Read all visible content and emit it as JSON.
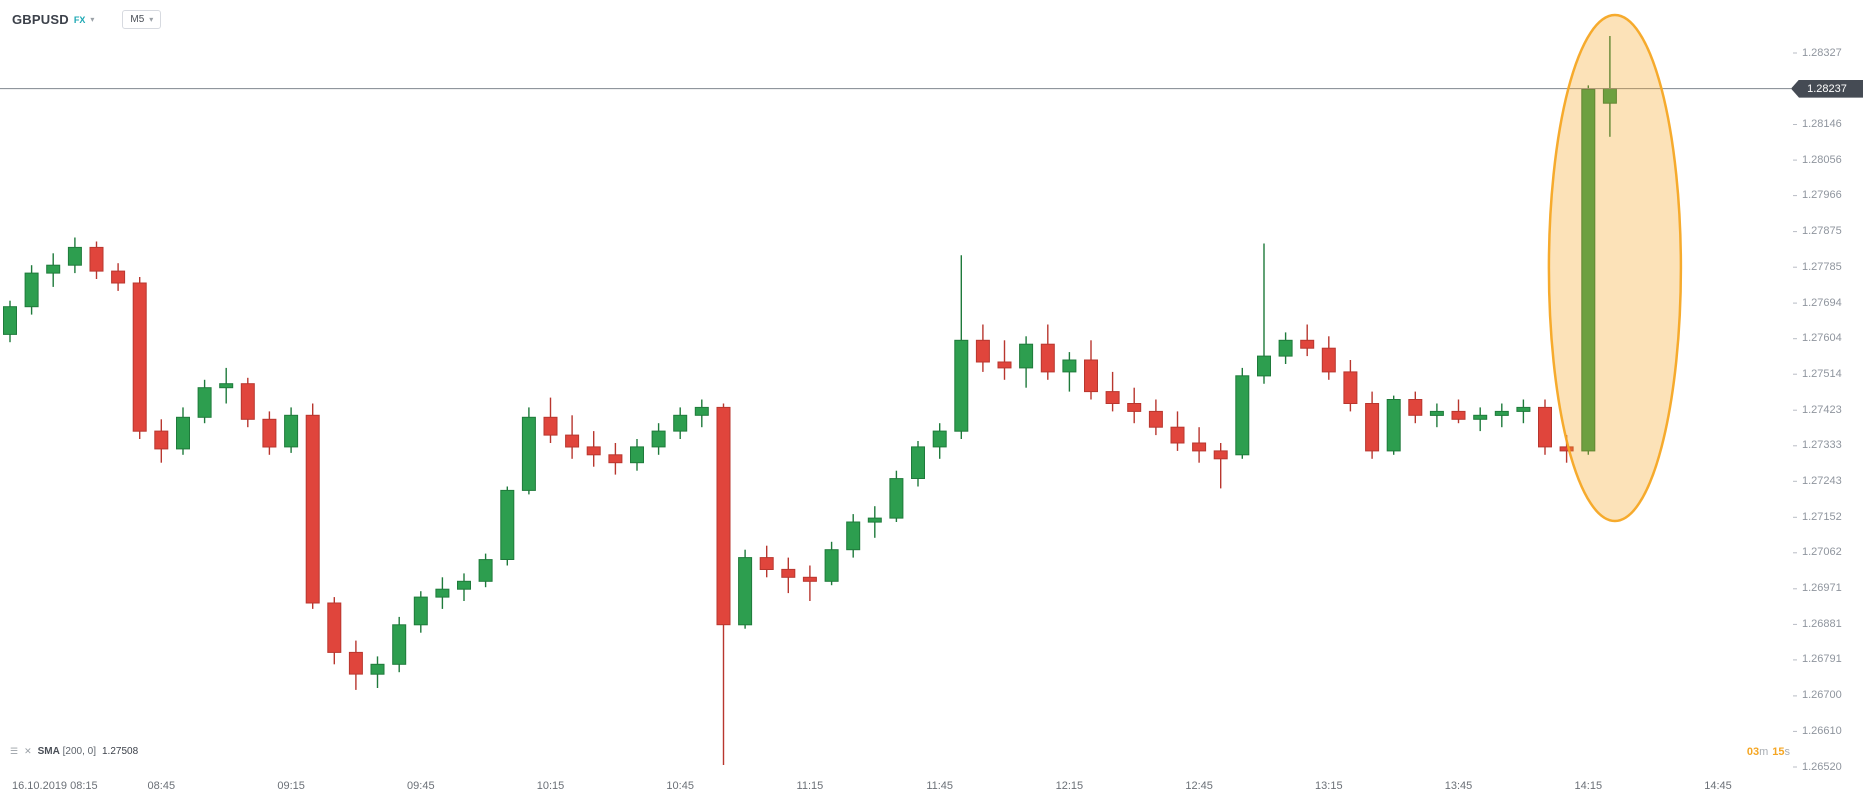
{
  "header": {
    "symbol": "GBPUSD",
    "market": "FX",
    "timeframe": "M5"
  },
  "indicator": {
    "name": "SMA",
    "params": "[200, 0]",
    "value": "1.27508"
  },
  "countdown": {
    "minutes": "03",
    "minutes_unit": "m",
    "seconds": "15",
    "seconds_unit": "s"
  },
  "price_axis": {
    "current_price": "1.28237",
    "labels": [
      "1.28327",
      "1.28237",
      "1.28146",
      "1.28056",
      "1.27966",
      "1.27875",
      "1.27785",
      "1.27694",
      "1.27604",
      "1.27514",
      "1.27423",
      "1.27333",
      "1.27243",
      "1.27152",
      "1.27062",
      "1.26971",
      "1.26881",
      "1.26791",
      "1.26700",
      "1.26610",
      "1.26520"
    ]
  },
  "time_axis": {
    "labels": [
      "16.10.2019 08:15",
      "08:45",
      "09:15",
      "09:45",
      "10:15",
      "10:45",
      "11:15",
      "11:45",
      "12:15",
      "12:45",
      "13:15",
      "13:45",
      "14:15",
      "14:45"
    ]
  },
  "chart_data": {
    "type": "candlestick",
    "symbol": "GBPUSD",
    "interval": "M5",
    "date": "16.10.2019",
    "price_range": [
      1.2652,
      1.28327
    ],
    "current_price": 1.28237,
    "up_color": "#2d9e4f",
    "up_border": "#1e7a3b",
    "down_color": "#e0453c",
    "down_border": "#b8362e",
    "line_color": "#80878f",
    "highlight_color": "#f5a623",
    "candles": [
      {
        "t": "08:10",
        "o": 1.27615,
        "h": 1.277,
        "l": 1.27595,
        "c": 1.27685
      },
      {
        "t": "08:15",
        "o": 1.27685,
        "h": 1.2779,
        "l": 1.27665,
        "c": 1.2777
      },
      {
        "t": "08:20",
        "o": 1.2777,
        "h": 1.2782,
        "l": 1.27735,
        "c": 1.2779
      },
      {
        "t": "08:25",
        "o": 1.2779,
        "h": 1.2786,
        "l": 1.2777,
        "c": 1.27835
      },
      {
        "t": "08:30",
        "o": 1.27835,
        "h": 1.2785,
        "l": 1.27755,
        "c": 1.27775
      },
      {
        "t": "08:35",
        "o": 1.27775,
        "h": 1.27795,
        "l": 1.27725,
        "c": 1.27745
      },
      {
        "t": "08:40",
        "o": 1.27745,
        "h": 1.2776,
        "l": 1.2735,
        "c": 1.2737
      },
      {
        "t": "08:45",
        "o": 1.2737,
        "h": 1.274,
        "l": 1.2729,
        "c": 1.27325
      },
      {
        "t": "08:50",
        "o": 1.27325,
        "h": 1.2743,
        "l": 1.2731,
        "c": 1.27405
      },
      {
        "t": "08:55",
        "o": 1.27405,
        "h": 1.275,
        "l": 1.2739,
        "c": 1.2748
      },
      {
        "t": "09:00",
        "o": 1.2748,
        "h": 1.2753,
        "l": 1.2744,
        "c": 1.2749
      },
      {
        "t": "09:05",
        "o": 1.2749,
        "h": 1.27505,
        "l": 1.2738,
        "c": 1.274
      },
      {
        "t": "09:10",
        "o": 1.274,
        "h": 1.2742,
        "l": 1.2731,
        "c": 1.2733
      },
      {
        "t": "09:15",
        "o": 1.2733,
        "h": 1.2743,
        "l": 1.27315,
        "c": 1.2741
      },
      {
        "t": "09:20",
        "o": 1.2741,
        "h": 1.2744,
        "l": 1.2692,
        "c": 1.26935
      },
      {
        "t": "09:25",
        "o": 1.26935,
        "h": 1.2695,
        "l": 1.2678,
        "c": 1.2681
      },
      {
        "t": "09:30",
        "o": 1.2681,
        "h": 1.2684,
        "l": 1.26715,
        "c": 1.26755
      },
      {
        "t": "09:35",
        "o": 1.26755,
        "h": 1.268,
        "l": 1.2672,
        "c": 1.2678
      },
      {
        "t": "09:40",
        "o": 1.2678,
        "h": 1.269,
        "l": 1.2676,
        "c": 1.2688
      },
      {
        "t": "09:45",
        "o": 1.2688,
        "h": 1.26965,
        "l": 1.2686,
        "c": 1.2695
      },
      {
        "t": "09:50",
        "o": 1.2695,
        "h": 1.27,
        "l": 1.2692,
        "c": 1.2697
      },
      {
        "t": "09:55",
        "o": 1.2697,
        "h": 1.2701,
        "l": 1.2694,
        "c": 1.2699
      },
      {
        "t": "10:00",
        "o": 1.2699,
        "h": 1.2706,
        "l": 1.26975,
        "c": 1.27045
      },
      {
        "t": "10:05",
        "o": 1.27045,
        "h": 1.2723,
        "l": 1.2703,
        "c": 1.2722
      },
      {
        "t": "10:10",
        "o": 1.2722,
        "h": 1.2743,
        "l": 1.2721,
        "c": 1.27405
      },
      {
        "t": "10:15",
        "o": 1.27405,
        "h": 1.27455,
        "l": 1.2734,
        "c": 1.2736
      },
      {
        "t": "10:20",
        "o": 1.2736,
        "h": 1.2741,
        "l": 1.273,
        "c": 1.2733
      },
      {
        "t": "10:25",
        "o": 1.2733,
        "h": 1.2737,
        "l": 1.2728,
        "c": 1.2731
      },
      {
        "t": "10:30",
        "o": 1.2731,
        "h": 1.2734,
        "l": 1.2726,
        "c": 1.2729
      },
      {
        "t": "10:35",
        "o": 1.2729,
        "h": 1.2735,
        "l": 1.2727,
        "c": 1.2733
      },
      {
        "t": "10:40",
        "o": 1.2733,
        "h": 1.2739,
        "l": 1.2731,
        "c": 1.2737
      },
      {
        "t": "10:45",
        "o": 1.2737,
        "h": 1.2743,
        "l": 1.2735,
        "c": 1.2741
      },
      {
        "t": "10:50",
        "o": 1.2741,
        "h": 1.2745,
        "l": 1.2738,
        "c": 1.2743
      },
      {
        "t": "10:55",
        "o": 1.2743,
        "h": 1.2744,
        "l": 1.26525,
        "c": 1.2688
      },
      {
        "t": "11:00",
        "o": 1.2688,
        "h": 1.2707,
        "l": 1.2687,
        "c": 1.2705
      },
      {
        "t": "11:05",
        "o": 1.2705,
        "h": 1.2708,
        "l": 1.27,
        "c": 1.2702
      },
      {
        "t": "11:10",
        "o": 1.2702,
        "h": 1.2705,
        "l": 1.2696,
        "c": 1.27
      },
      {
        "t": "11:15",
        "o": 1.27,
        "h": 1.2703,
        "l": 1.2694,
        "c": 1.2699
      },
      {
        "t": "11:20",
        "o": 1.2699,
        "h": 1.2709,
        "l": 1.2698,
        "c": 1.2707
      },
      {
        "t": "11:25",
        "o": 1.2707,
        "h": 1.2716,
        "l": 1.2705,
        "c": 1.2714
      },
      {
        "t": "11:30",
        "o": 1.2714,
        "h": 1.2718,
        "l": 1.271,
        "c": 1.2715
      },
      {
        "t": "11:35",
        "o": 1.2715,
        "h": 1.2727,
        "l": 1.2714,
        "c": 1.2725
      },
      {
        "t": "11:40",
        "o": 1.2725,
        "h": 1.27345,
        "l": 1.2723,
        "c": 1.2733
      },
      {
        "t": "11:45",
        "o": 1.2733,
        "h": 1.2739,
        "l": 1.273,
        "c": 1.2737
      },
      {
        "t": "11:50",
        "o": 1.2737,
        "h": 1.27815,
        "l": 1.2735,
        "c": 1.276
      },
      {
        "t": "11:55",
        "o": 1.276,
        "h": 1.2764,
        "l": 1.2752,
        "c": 1.27545
      },
      {
        "t": "12:00",
        "o": 1.27545,
        "h": 1.276,
        "l": 1.275,
        "c": 1.2753
      },
      {
        "t": "12:05",
        "o": 1.2753,
        "h": 1.2761,
        "l": 1.2748,
        "c": 1.2759
      },
      {
        "t": "12:10",
        "o": 1.2759,
        "h": 1.2764,
        "l": 1.275,
        "c": 1.2752
      },
      {
        "t": "12:15",
        "o": 1.2752,
        "h": 1.2757,
        "l": 1.2747,
        "c": 1.2755
      },
      {
        "t": "12:20",
        "o": 1.2755,
        "h": 1.276,
        "l": 1.2745,
        "c": 1.2747
      },
      {
        "t": "12:25",
        "o": 1.2747,
        "h": 1.2752,
        "l": 1.2742,
        "c": 1.2744
      },
      {
        "t": "12:30",
        "o": 1.2744,
        "h": 1.2748,
        "l": 1.2739,
        "c": 1.2742
      },
      {
        "t": "12:35",
        "o": 1.2742,
        "h": 1.2745,
        "l": 1.2736,
        "c": 1.2738
      },
      {
        "t": "12:40",
        "o": 1.2738,
        "h": 1.2742,
        "l": 1.2732,
        "c": 1.2734
      },
      {
        "t": "12:45",
        "o": 1.2734,
        "h": 1.2738,
        "l": 1.2729,
        "c": 1.2732
      },
      {
        "t": "12:50",
        "o": 1.2732,
        "h": 1.2734,
        "l": 1.27225,
        "c": 1.273
      },
      {
        "t": "12:55",
        "o": 1.2731,
        "h": 1.2753,
        "l": 1.273,
        "c": 1.2751
      },
      {
        "t": "13:00",
        "o": 1.2751,
        "h": 1.27845,
        "l": 1.2749,
        "c": 1.2756
      },
      {
        "t": "13:05",
        "o": 1.2756,
        "h": 1.2762,
        "l": 1.2754,
        "c": 1.276
      },
      {
        "t": "13:10",
        "o": 1.276,
        "h": 1.2764,
        "l": 1.2756,
        "c": 1.2758
      },
      {
        "t": "13:15",
        "o": 1.2758,
        "h": 1.2761,
        "l": 1.275,
        "c": 1.2752
      },
      {
        "t": "13:20",
        "o": 1.2752,
        "h": 1.2755,
        "l": 1.2742,
        "c": 1.2744
      },
      {
        "t": "13:25",
        "o": 1.2744,
        "h": 1.2747,
        "l": 1.273,
        "c": 1.2732
      },
      {
        "t": "13:30",
        "o": 1.2732,
        "h": 1.2746,
        "l": 1.2731,
        "c": 1.2745
      },
      {
        "t": "13:35",
        "o": 1.2745,
        "h": 1.2747,
        "l": 1.2739,
        "c": 1.2741
      },
      {
        "t": "13:40",
        "o": 1.2741,
        "h": 1.2744,
        "l": 1.2738,
        "c": 1.2742
      },
      {
        "t": "13:45",
        "o": 1.2742,
        "h": 1.2745,
        "l": 1.2739,
        "c": 1.274
      },
      {
        "t": "13:50",
        "o": 1.274,
        "h": 1.2743,
        "l": 1.2737,
        "c": 1.2741
      },
      {
        "t": "13:55",
        "o": 1.2741,
        "h": 1.2744,
        "l": 1.2738,
        "c": 1.2742
      },
      {
        "t": "14:00",
        "o": 1.2742,
        "h": 1.2745,
        "l": 1.2739,
        "c": 1.2743
      },
      {
        "t": "14:05",
        "o": 1.2743,
        "h": 1.2745,
        "l": 1.2731,
        "c": 1.2733
      },
      {
        "t": "14:10",
        "o": 1.2733,
        "h": 1.2736,
        "l": 1.2729,
        "c": 1.2732
      },
      {
        "t": "14:15",
        "o": 1.2732,
        "h": 1.28245,
        "l": 1.2731,
        "c": 1.28235
      },
      {
        "t": "14:20",
        "o": 1.282,
        "h": 1.2837,
        "l": 1.28115,
        "c": 1.28237
      }
    ]
  }
}
